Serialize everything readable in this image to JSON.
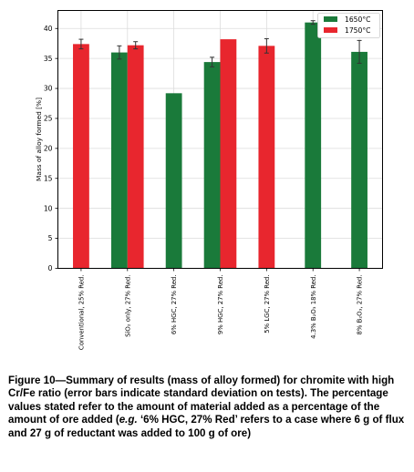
{
  "chart_data": {
    "type": "bar",
    "ylabel": "Mass of alloy formed [%]",
    "ylim": [
      0,
      43
    ],
    "yticks": [
      0,
      5,
      10,
      15,
      20,
      25,
      30,
      35,
      40
    ],
    "grid": true,
    "legend_position": "top-right",
    "categories": [
      "Conventional, 25% Red.",
      "SiO₂ only, 27% Red.",
      "6% HGC, 27% Red.",
      "9% HGC, 27% Red.",
      "5% LGC, 27% Red.",
      "4.3% B₂O₃ 18% Red.",
      "8% B₂O₃, 27% Red."
    ],
    "series": [
      {
        "name": "1650°C",
        "color": "#1a7a3a",
        "values": [
          null,
          36.0,
          29.2,
          34.4,
          null,
          41.0,
          36.1
        ],
        "errors": [
          null,
          1.1,
          0,
          0.8,
          null,
          0.3,
          1.9
        ]
      },
      {
        "name": "1750°C",
        "color": "#e8262e",
        "values": [
          37.4,
          37.2,
          null,
          38.2,
          37.1,
          null,
          null
        ],
        "errors": [
          0.8,
          0.6,
          0,
          0,
          1.2,
          0,
          0
        ]
      }
    ]
  },
  "caption": {
    "p1": "Figure 10—Summary of results (mass of alloy formed) for chromite with high Cr/Fe ratio (error bars indicate standard deviation on tests). The percentage  values stated refer to the amount of material added as a percentage of the amount of ore added (",
    "eg": "e.g.",
    "p2": " ‘6% HGC, 27% Red’ refers to a case where 6 g of flux and 27 g of reductant was added to 100 g of ore)"
  }
}
